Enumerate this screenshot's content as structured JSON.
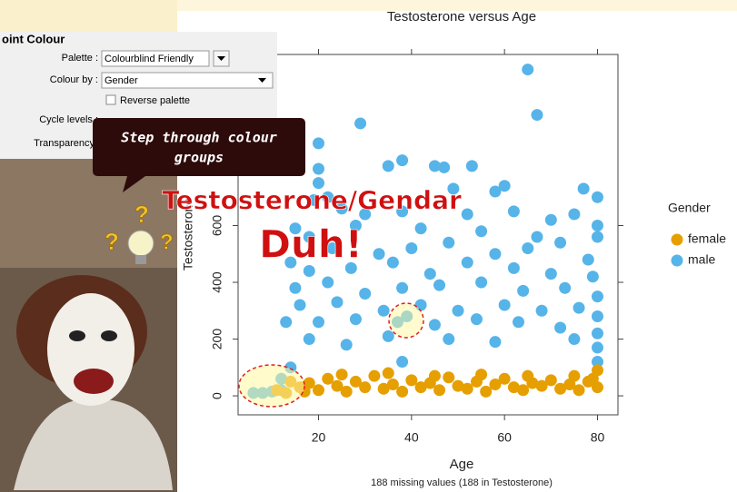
{
  "chart_data": {
    "type": "scatter",
    "title": "Testosterone versus Age",
    "xlabel": "Age",
    "ylabel": "Testosterone",
    "caption": "188 missing values (188 in Testosterone)",
    "legend_title": "Gender",
    "xlim": [
      2.7,
      84.4
    ],
    "ylim": [
      -67,
      1203
    ],
    "xticks": [
      20,
      40,
      60,
      80
    ],
    "yticks": [
      0,
      200,
      400,
      600
    ],
    "series": [
      {
        "name": "female",
        "color": "#E69F00",
        "x": [
          14,
          16,
          18,
          20,
          22,
          24,
          26,
          28,
          30,
          32,
          34,
          36,
          38,
          40,
          42,
          44,
          46,
          48,
          50,
          52,
          54,
          56,
          58,
          60,
          62,
          64,
          66,
          68,
          70,
          72,
          74,
          76,
          78,
          80,
          80,
          79,
          11,
          13,
          17,
          25,
          35,
          45,
          55,
          65,
          75
        ],
        "y": [
          50,
          30,
          45,
          20,
          60,
          35,
          15,
          50,
          30,
          70,
          25,
          40,
          15,
          55,
          30,
          45,
          20,
          65,
          35,
          25,
          50,
          15,
          40,
          60,
          30,
          20,
          45,
          35,
          55,
          25,
          40,
          20,
          50,
          30,
          90,
          60,
          20,
          10,
          15,
          75,
          80,
          70,
          75,
          70,
          70
        ]
      },
      {
        "name": "male",
        "color": "#56B4E9",
        "x": [
          65,
          67,
          29,
          20,
          20,
          38,
          35,
          45,
          47,
          53,
          20,
          22,
          19,
          49,
          58,
          60,
          77,
          80,
          25,
          30,
          38,
          52,
          62,
          70,
          75,
          80,
          15,
          18,
          28,
          42,
          55,
          67,
          72,
          80,
          23,
          33,
          40,
          48,
          58,
          65,
          78,
          14,
          18,
          27,
          36,
          44,
          52,
          62,
          70,
          79,
          15,
          22,
          30,
          38,
          46,
          55,
          64,
          73,
          80,
          16,
          24,
          34,
          42,
          50,
          60,
          68,
          76,
          80,
          13,
          20,
          28,
          37,
          39,
          45,
          54,
          63,
          72,
          80,
          18,
          26,
          35,
          48,
          58,
          75,
          80,
          14,
          12,
          38,
          80,
          6,
          8,
          10,
          12
        ],
        "y": [
          1150,
          990,
          960,
          890,
          800,
          830,
          810,
          810,
          805,
          810,
          750,
          700,
          690,
          730,
          720,
          740,
          730,
          700,
          660,
          640,
          650,
          640,
          650,
          620,
          640,
          600,
          590,
          560,
          600,
          590,
          580,
          560,
          540,
          560,
          520,
          500,
          520,
          540,
          500,
          520,
          480,
          470,
          440,
          450,
          470,
          430,
          470,
          450,
          430,
          420,
          380,
          400,
          360,
          380,
          390,
          400,
          370,
          380,
          350,
          320,
          330,
          300,
          320,
          300,
          320,
          300,
          310,
          280,
          260,
          260,
          270,
          260,
          280,
          250,
          270,
          260,
          240,
          220,
          200,
          180,
          210,
          200,
          190,
          200,
          170,
          100,
          60,
          120,
          120,
          10,
          10,
          15,
          20
        ]
      }
    ]
  },
  "ui_panel": {
    "title": "oint Colour",
    "palette_label": "Palette :",
    "palette_value": "Colourblind Friendly",
    "colour_by_label": "Colour by :",
    "colour_by_value": "Gender",
    "reverse_label": "Reverse palette",
    "cycle_label": "Cycle levels :",
    "transparency_label": "Transparency"
  },
  "annotations": {
    "bubble": "Step through colour",
    "bubble_line2": "groups",
    "headline": "Testosterone/Gendar",
    "exclaim": "Duh!",
    "question": "?"
  }
}
